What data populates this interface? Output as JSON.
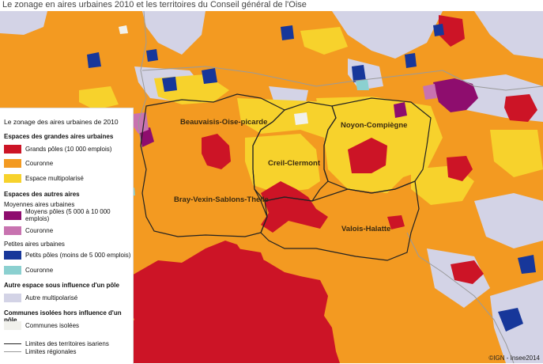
{
  "title": "Le zonage en aires urbaines 2010 et les territoires du Conseil général de l'Oise",
  "colors": {
    "grand_pole": "#cc1426",
    "couronne_grand": "#f39a21",
    "multipolarise": "#f7d22c",
    "moyen_pole": "#8e0d6e",
    "couronne_moyen": "#c873b0",
    "petit_pole": "#17379a",
    "couronne_petit": "#8bd0d0",
    "autre_multipolarise": "#d3d3e6",
    "isolees": "#f1f1ec",
    "border": "#222222"
  },
  "territories": [
    {
      "label": "Beauvaisis-Oise-picarde"
    },
    {
      "label": "Noyon-Compiègne"
    },
    {
      "label": "Creil-Clermont"
    },
    {
      "label": "Bray-Vexin-Sablons-Thelle"
    },
    {
      "label": "Valois-Halatte"
    }
  ],
  "legend": {
    "title": "Le zonage des aires urbaines de 2010",
    "sections": {
      "grandes": "Espaces des grandes aires urbaines",
      "autres": "Espaces des autres aires",
      "moyennes": "Moyennes aires urbaines",
      "petites": "Petites aires urbaines",
      "influence": "Autre espace sous influence d'un pôle",
      "isolees": "Communes isolées hors influence d'un pôle"
    },
    "items": {
      "grands_poles": "Grands pôles (10 000 emplois)",
      "couronne1": "Couronne",
      "espace_multipolarise": "Espace multipolarisé",
      "moyens_poles": "Moyens pôles (5 000 à 10 000 emplois)",
      "couronne2": "Couronne",
      "petits_poles": "Petits pôles (moins de 5 000 emplois)",
      "couronne3": "Couronne",
      "autre_multipolarise": "Autre multipolarisé",
      "communes_isolees": "Communes isolées"
    },
    "lines": {
      "territoires": "Limites des territoires isariens",
      "regionales": "Limites régionales"
    }
  },
  "credit": "©IGN - Insee2014"
}
